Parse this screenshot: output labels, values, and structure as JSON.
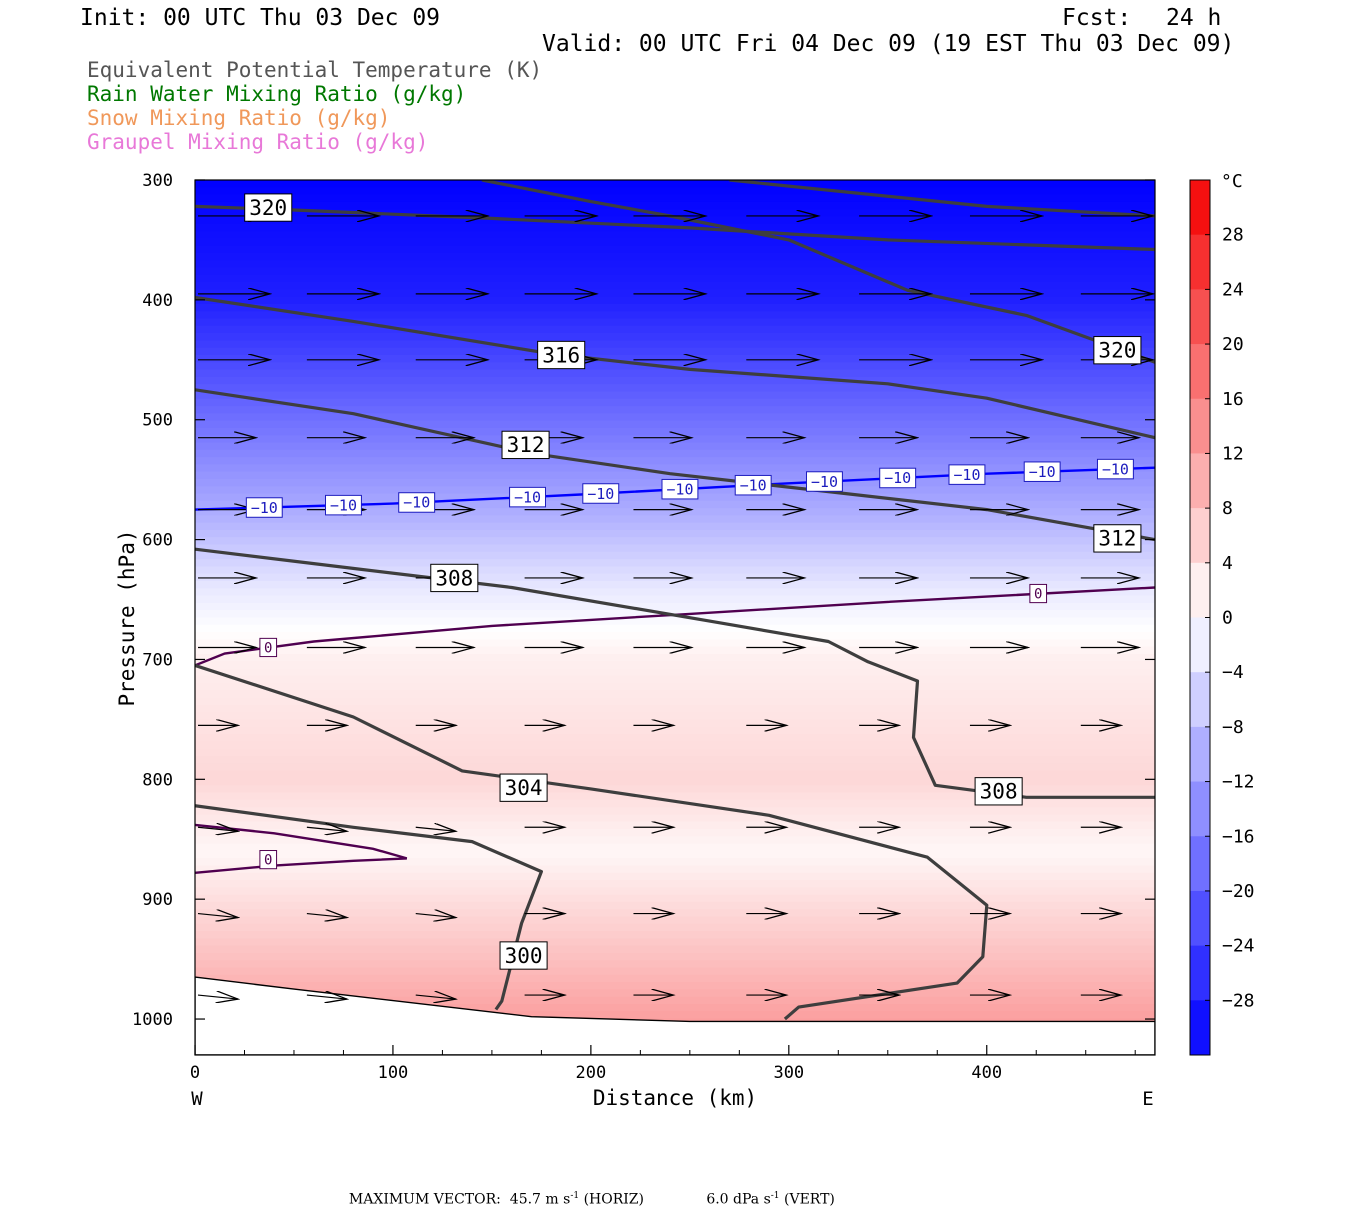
{
  "header": {
    "init": "Init: 00 UTC Thu 03 Dec 09",
    "fcst_label": "Fcst:",
    "fcst_value": "24 h",
    "valid": "Valid: 00 UTC Fri 04 Dec 09 (19 EST Thu 03 Dec 09)"
  },
  "legend": [
    {
      "label": "Equivalent Potential Temperature (K)",
      "color": "#555555"
    },
    {
      "label": "Rain Water Mixing Ratio (g/kg)",
      "color": "#007800"
    },
    {
      "label": "Snow Mixing Ratio (g/kg)",
      "color": "#f0985a"
    },
    {
      "label": "Graupel Mixing Ratio (g/kg)",
      "color": "#e878d8"
    }
  ],
  "footer": {
    "prefix": "MAXIMUM VECTOR:",
    "horiz_value": "45.7",
    "horiz_unit": "m s",
    "horiz_exp": "-1",
    "horiz_tag": "(HORIZ)",
    "vert_value": "6.0",
    "vert_unit": "dPa s",
    "vert_exp": "-1",
    "vert_tag": "(VERT)"
  },
  "chart_data": {
    "type": "heatmap",
    "description_free": true,
    "xlabel": "Distance (km)",
    "ylabel": "Pressure (hPa)",
    "xlim": [
      0,
      485
    ],
    "ylim": [
      1030,
      300
    ],
    "x_ticks": [
      "0",
      "100",
      "200",
      "300",
      "400"
    ],
    "y_ticks": [
      "300",
      "400",
      "500",
      "600",
      "700",
      "800",
      "900",
      "1000"
    ],
    "x_dir_left": "W",
    "x_dir_right": "E",
    "colorbar": {
      "unit": "°C",
      "ticks": [
        "28",
        "24",
        "20",
        "16",
        "12",
        "8",
        "4",
        "0",
        "−4",
        "−8",
        "−12",
        "−16",
        "−20",
        "−24",
        "−28"
      ],
      "range": [
        -32,
        32
      ],
      "neg_color": "#0000ff",
      "pos_color": "#f40000"
    },
    "temperature_field_bands": [
      {
        "p": 300,
        "temp": -32
      },
      {
        "p": 400,
        "temp": -28
      },
      {
        "p": 500,
        "temp": -18
      },
      {
        "p": 580,
        "temp": -10
      },
      {
        "p": 640,
        "temp": -3
      },
      {
        "p": 700,
        "temp": 2
      },
      {
        "p": 800,
        "temp": 5
      },
      {
        "p": 860,
        "temp": 1
      },
      {
        "p": 950,
        "temp": 8
      },
      {
        "p": 1000,
        "temp": 12
      }
    ],
    "theta_e_contours": [
      {
        "label": "320",
        "points": [
          [
            0,
            322
          ],
          [
            50,
            325
          ],
          [
            150,
            332
          ],
          [
            250,
            340
          ],
          [
            350,
            350
          ],
          [
            485,
            358
          ]
        ]
      },
      {
        "label": "320",
        "points": [
          [
            145,
            300
          ],
          [
            200,
            318
          ],
          [
            240,
            330
          ],
          [
            300,
            350
          ],
          [
            360,
            392
          ],
          [
            420,
            413
          ],
          [
            485,
            452
          ]
        ]
      },
      {
        "label": "",
        "points": [
          [
            270,
            300
          ],
          [
            400,
            322
          ],
          [
            485,
            330
          ]
        ]
      },
      {
        "label": "316",
        "points": [
          [
            0,
            398
          ],
          [
            80,
            418
          ],
          [
            180,
            445
          ],
          [
            250,
            458
          ],
          [
            350,
            470
          ],
          [
            400,
            482
          ],
          [
            485,
            515
          ]
        ]
      },
      {
        "label": "312",
        "points": [
          [
            0,
            475
          ],
          [
            80,
            495
          ],
          [
            170,
            528
          ],
          [
            240,
            545
          ],
          [
            320,
            560
          ],
          [
            400,
            575
          ],
          [
            485,
            600
          ]
        ]
      },
      {
        "label": "308",
        "points": [
          [
            0,
            608
          ],
          [
            60,
            620
          ],
          [
            160,
            640
          ],
          [
            260,
            668
          ],
          [
            320,
            685
          ],
          [
            340,
            702
          ],
          [
            365,
            718
          ],
          [
            363,
            765
          ],
          [
            374,
            805
          ],
          [
            420,
            815
          ],
          [
            485,
            815
          ]
        ]
      },
      {
        "label": "304",
        "points": [
          [
            0,
            705
          ],
          [
            80,
            748
          ],
          [
            135,
            793
          ],
          [
            200,
            808
          ],
          [
            290,
            830
          ],
          [
            370,
            865
          ],
          [
            400,
            905
          ],
          [
            398,
            948
          ],
          [
            385,
            970
          ],
          [
            305,
            990
          ],
          [
            298,
            1000
          ]
        ]
      },
      {
        "label": "300",
        "points": [
          [
            0,
            822
          ],
          [
            80,
            840
          ],
          [
            140,
            852
          ],
          [
            175,
            877
          ],
          [
            165,
            920
          ],
          [
            155,
            985
          ],
          [
            152,
            992
          ]
        ]
      }
    ],
    "isotherms": [
      {
        "temp": -10,
        "color": "#0000ff",
        "label": "−10",
        "points": [
          [
            0,
            575
          ],
          [
            100,
            570
          ],
          [
            200,
            562
          ],
          [
            300,
            553
          ],
          [
            400,
            545
          ],
          [
            485,
            540
          ]
        ]
      },
      {
        "temp": 0,
        "color": "#500050",
        "label": "0",
        "points": [
          [
            0,
            705
          ],
          [
            15,
            695
          ],
          [
            60,
            685
          ],
          [
            150,
            672
          ],
          [
            250,
            662
          ],
          [
            350,
            652
          ],
          [
            485,
            640
          ]
        ]
      },
      {
        "temp": 0,
        "color": "#500050",
        "label": "0",
        "points": [
          [
            0,
            838
          ],
          [
            40,
            845
          ],
          [
            90,
            858
          ],
          [
            107,
            866
          ],
          [
            80,
            868
          ],
          [
            40,
            872
          ],
          [
            0,
            878
          ]
        ]
      }
    ],
    "wind_vector_levels": [
      330,
      395,
      450,
      515,
      575,
      632,
      690,
      755,
      840,
      912,
      980
    ]
  }
}
